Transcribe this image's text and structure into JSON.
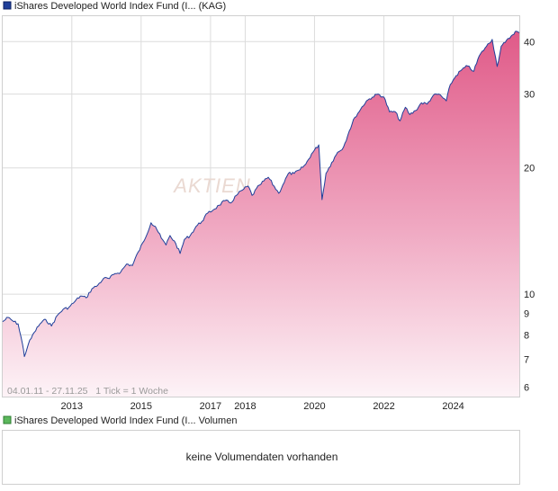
{
  "chart_data": [
    {
      "type": "area",
      "legend": "iShares Developed World Index Fund (I... (KAG)",
      "watermark": "AKTIEN",
      "footer_note": "04.01.11 - 27.11.25   1 Tick = 1 Woche",
      "y_scale": "log",
      "ylim": [
        5.7,
        46
      ],
      "y_ticks": [
        6,
        7,
        8,
        9,
        10,
        20,
        30,
        40
      ],
      "x_range": [
        "2011-01-04",
        "2025-11-27"
      ],
      "x_ticks": [
        "2013",
        "2015",
        "2017",
        "2018",
        "2020",
        "2022",
        "2024"
      ],
      "grid": true,
      "colors": {
        "line": "#1f3f9a",
        "fill_top": "#e05a88",
        "fill_bottom": "#fdf3f7",
        "legend_swatch": "#1f3f9a",
        "grid": "#dcdcdc"
      },
      "series": [
        {
          "name": "iShares Developed World Index Fund (I... (KAG)",
          "x": [
            "2011-01-04",
            "2011-03-01",
            "2011-05-01",
            "2011-06-15",
            "2011-08-01",
            "2011-08-20",
            "2011-10-01",
            "2011-12-01",
            "2012-02-01",
            "2012-04-01",
            "2012-06-01",
            "2012-08-01",
            "2012-10-01",
            "2012-12-01",
            "2013-02-01",
            "2013-04-01",
            "2013-06-01",
            "2013-08-01",
            "2013-10-01",
            "2013-12-01",
            "2014-02-01",
            "2014-04-01",
            "2014-06-01",
            "2014-08-01",
            "2014-10-01",
            "2014-12-01",
            "2015-02-01",
            "2015-04-15",
            "2015-06-01",
            "2015-08-01",
            "2015-09-20",
            "2015-11-01",
            "2016-01-01",
            "2016-02-15",
            "2016-04-01",
            "2016-06-01",
            "2016-08-01",
            "2016-10-01",
            "2016-12-01",
            "2017-02-01",
            "2017-04-01",
            "2017-06-01",
            "2017-08-01",
            "2017-10-01",
            "2017-12-01",
            "2018-02-01",
            "2018-03-15",
            "2018-06-01",
            "2018-09-01",
            "2018-12-20",
            "2019-02-01",
            "2019-04-01",
            "2019-06-01",
            "2019-08-01",
            "2019-10-01",
            "2019-12-01",
            "2020-02-15",
            "2020-03-20",
            "2020-05-01",
            "2020-07-01",
            "2020-09-01",
            "2020-11-01",
            "2021-01-01",
            "2021-03-01",
            "2021-05-01",
            "2021-07-01",
            "2021-09-01",
            "2021-11-01",
            "2022-01-01",
            "2022-03-01",
            "2022-05-01",
            "2022-06-20",
            "2022-08-15",
            "2022-10-01",
            "2022-12-01",
            "2023-02-01",
            "2023-04-01",
            "2023-06-01",
            "2023-08-01",
            "2023-10-20",
            "2023-12-01",
            "2024-02-01",
            "2024-04-01",
            "2024-06-01",
            "2024-08-05",
            "2024-10-01",
            "2024-12-01",
            "2025-02-15",
            "2025-04-08",
            "2025-05-20",
            "2025-07-01",
            "2025-09-01",
            "2025-10-15",
            "2025-11-27"
          ],
          "values": [
            8.6,
            8.8,
            8.6,
            8.5,
            7.6,
            7.1,
            7.6,
            8.1,
            8.5,
            8.7,
            8.4,
            8.9,
            9.2,
            9.3,
            9.6,
            9.9,
            9.8,
            10.3,
            10.5,
            10.9,
            10.9,
            11.2,
            11.3,
            11.8,
            11.7,
            12.6,
            13.4,
            14.8,
            14.5,
            13.6,
            13.1,
            13.8,
            13.2,
            12.5,
            13.5,
            13.8,
            14.5,
            14.9,
            15.6,
            15.9,
            16.3,
            16.7,
            16.5,
            17.2,
            17.7,
            18.1,
            17.2,
            18.2,
            19.0,
            17.4,
            18.2,
            19.4,
            19.4,
            19.8,
            20.4,
            21.6,
            22.7,
            16.8,
            19.4,
            20.6,
            21.8,
            22.4,
            24.5,
            26.4,
            27.6,
            28.9,
            29.5,
            30.0,
            29.5,
            27.2,
            27.2,
            25.9,
            27.9,
            26.8,
            27.4,
            28.6,
            28.4,
            29.7,
            30.0,
            28.9,
            31.6,
            33.2,
            34.3,
            35.0,
            34.0,
            37.0,
            38.6,
            40.5,
            34.9,
            39.0,
            39.8,
            41.2,
            42.3,
            42.0
          ]
        }
      ]
    },
    {
      "type": "bar",
      "legend": "iShares Developed World Index Fund (I... Volumen",
      "message": "keine Volumendaten vorhanden",
      "colors": {
        "legend_swatch": "#5cb85c"
      }
    }
  ]
}
